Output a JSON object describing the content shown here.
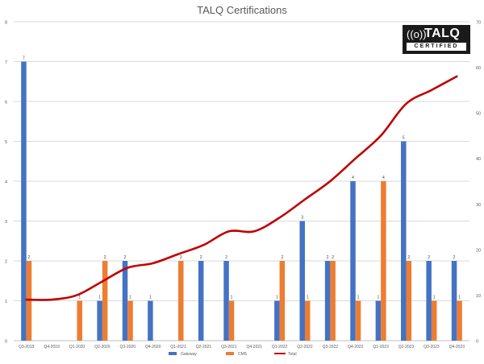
{
  "chart_data": {
    "type": "bar",
    "title": "TALQ Certifications",
    "categories": [
      "Q3-2019",
      "Q4-2019",
      "Q1-2020",
      "Q2-2020",
      "Q3-2020",
      "Q4-2020",
      "Q1-2021",
      "Q2-2021",
      "Q3-2021",
      "Q4-2021",
      "Q1-2022",
      "Q2-2022",
      "Q3-2022",
      "Q4-2022",
      "Q1-2023",
      "Q2-2023",
      "Q3-2023",
      "Q4-2023"
    ],
    "series": [
      {
        "name": "Gateway",
        "type": "bar",
        "axis": "left",
        "color": "#4472C4",
        "values": [
          7,
          null,
          null,
          1,
          2,
          1,
          null,
          2,
          2,
          null,
          1,
          3,
          2,
          4,
          1,
          5,
          2,
          2
        ]
      },
      {
        "name": "CMS",
        "type": "bar",
        "axis": "left",
        "color": "#ED7D31",
        "values": [
          2,
          null,
          1,
          2,
          1,
          null,
          2,
          null,
          1,
          null,
          2,
          1,
          2,
          1,
          4,
          2,
          1,
          1
        ]
      },
      {
        "name": "Total",
        "type": "line",
        "axis": "right",
        "color": "#C00000",
        "values": [
          9,
          9,
          10,
          13,
          16,
          17,
          19,
          21,
          24,
          24,
          27,
          31,
          35,
          40,
          45,
          52,
          55,
          58
        ]
      }
    ],
    "y_left": {
      "min": 0,
      "max": 8,
      "ticks": [
        "0",
        "1",
        "2",
        "3",
        "4",
        "5",
        "6",
        "7",
        "8"
      ]
    },
    "y_right": {
      "min": 0,
      "max": 70,
      "ticks": [
        "0",
        "10",
        "20",
        "30",
        "40",
        "50",
        "60",
        "70"
      ]
    },
    "grid": true,
    "legend_position": "bottom"
  },
  "logo": {
    "mark": "((o))",
    "word": "TALQ",
    "sub": "CERTIFIED"
  }
}
